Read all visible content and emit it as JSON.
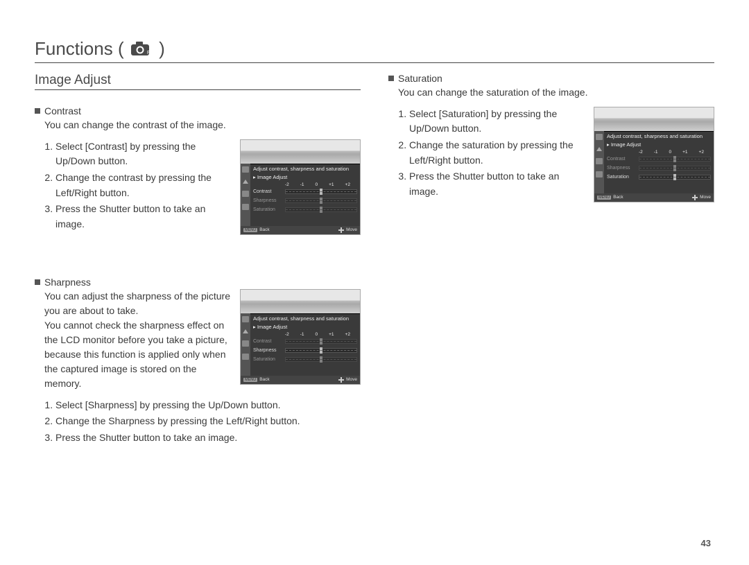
{
  "page": {
    "title_prefix": "Functions (",
    "title_suffix": " )",
    "section_title": "Image Adjust",
    "page_number": "43"
  },
  "lcd": {
    "header_text": "Adjust contrast, sharpness and saturation",
    "submenu_text": "Image Adjust",
    "scale_labels": [
      "-2",
      "-1",
      "0",
      "+1",
      "+2"
    ],
    "rows": {
      "contrast": "Contrast",
      "sharpness": "Sharpness",
      "saturation": "Saturation"
    },
    "footer": {
      "menu_badge": "MENU",
      "back": "Back",
      "move": "Move"
    }
  },
  "contrast": {
    "heading": "Contrast",
    "intro": "You can change the contrast of the image.",
    "steps": [
      "Select [Contrast] by pressing the Up/Down button.",
      "Change the contrast by pressing the Left/Right button.",
      "Press the Shutter button to take an image."
    ],
    "highlight": "contrast"
  },
  "sharpness": {
    "heading": "Sharpness",
    "intro1": "You can adjust the sharpness of the picture you are about to take.",
    "intro2": "You cannot check the sharpness effect on the LCD monitor before you take a picture, because this function is applied only when the captured image is stored on the memory.",
    "steps": [
      "Select [Sharpness] by pressing the Up/Down button.",
      "Change the Sharpness by pressing the Left/Right button.",
      "Press the Shutter button to take an image."
    ],
    "highlight": "sharpness"
  },
  "saturation": {
    "heading": "Saturation",
    "intro": "You can change the saturation of the image.",
    "steps": [
      "Select [Saturation] by pressing the Up/Down button.",
      "Change the saturation by pressing the Left/Right button.",
      "Press the Shutter button to take an image."
    ],
    "highlight": "saturation"
  }
}
